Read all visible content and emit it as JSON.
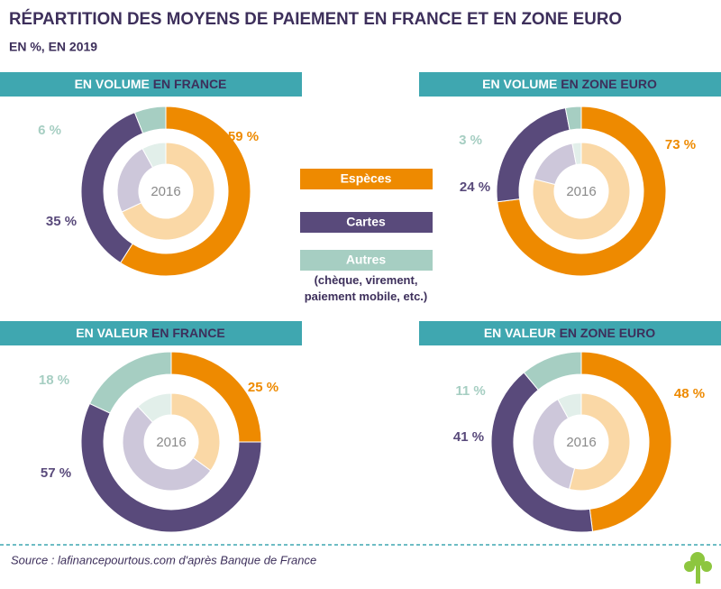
{
  "title": "RÉPARTITION DES MOYENS DE PAIEMENT EN FRANCE ET EN ZONE EURO",
  "subtitle": "EN %, EN 2019",
  "legend": [
    {
      "name": "Espèces",
      "color": "#ee8a00"
    },
    {
      "name": "Cartes",
      "color": "#594a7b"
    },
    {
      "name": "Autres",
      "color": "#a6cec2",
      "note": "(chèque, virement, paiement mobile, etc.)"
    }
  ],
  "inner_colors": [
    "#fad8a6",
    "#cdc7da",
    "#e2efea"
  ],
  "source": "Source : lafinancepourtous.com d'après Banque de France",
  "chart_data": [
    {
      "type": "donut",
      "title_measure": "EN VOLUME",
      "title_area": "EN FRANCE",
      "values": [
        59,
        35,
        6
      ],
      "value_labels": [
        "59 %",
        "35 %",
        "6 %"
      ],
      "inner": {
        "label": "2016",
        "values": [
          68,
          24,
          8
        ]
      }
    },
    {
      "type": "donut",
      "title_measure": "EN VOLUME",
      "title_area": "EN ZONE EURO",
      "values": [
        73,
        24,
        3
      ],
      "value_labels": [
        "73 %",
        "24 %",
        "3 %"
      ],
      "inner": {
        "label": "2016",
        "values": [
          79,
          18,
          3
        ]
      }
    },
    {
      "type": "donut",
      "title_measure": "EN VALEUR",
      "title_area": "EN FRANCE",
      "values": [
        25,
        57,
        18
      ],
      "value_labels": [
        "25 %",
        "57 %",
        "18 %"
      ],
      "inner": {
        "label": "2016",
        "values": [
          35,
          53,
          12
        ]
      }
    },
    {
      "type": "donut",
      "title_measure": "EN VALEUR",
      "title_area": "EN ZONE EURO",
      "values": [
        48,
        41,
        11
      ],
      "value_labels": [
        "48 %",
        "41 %",
        "11 %"
      ],
      "inner": {
        "label": "2016",
        "values": [
          54,
          38,
          8
        ]
      }
    }
  ]
}
